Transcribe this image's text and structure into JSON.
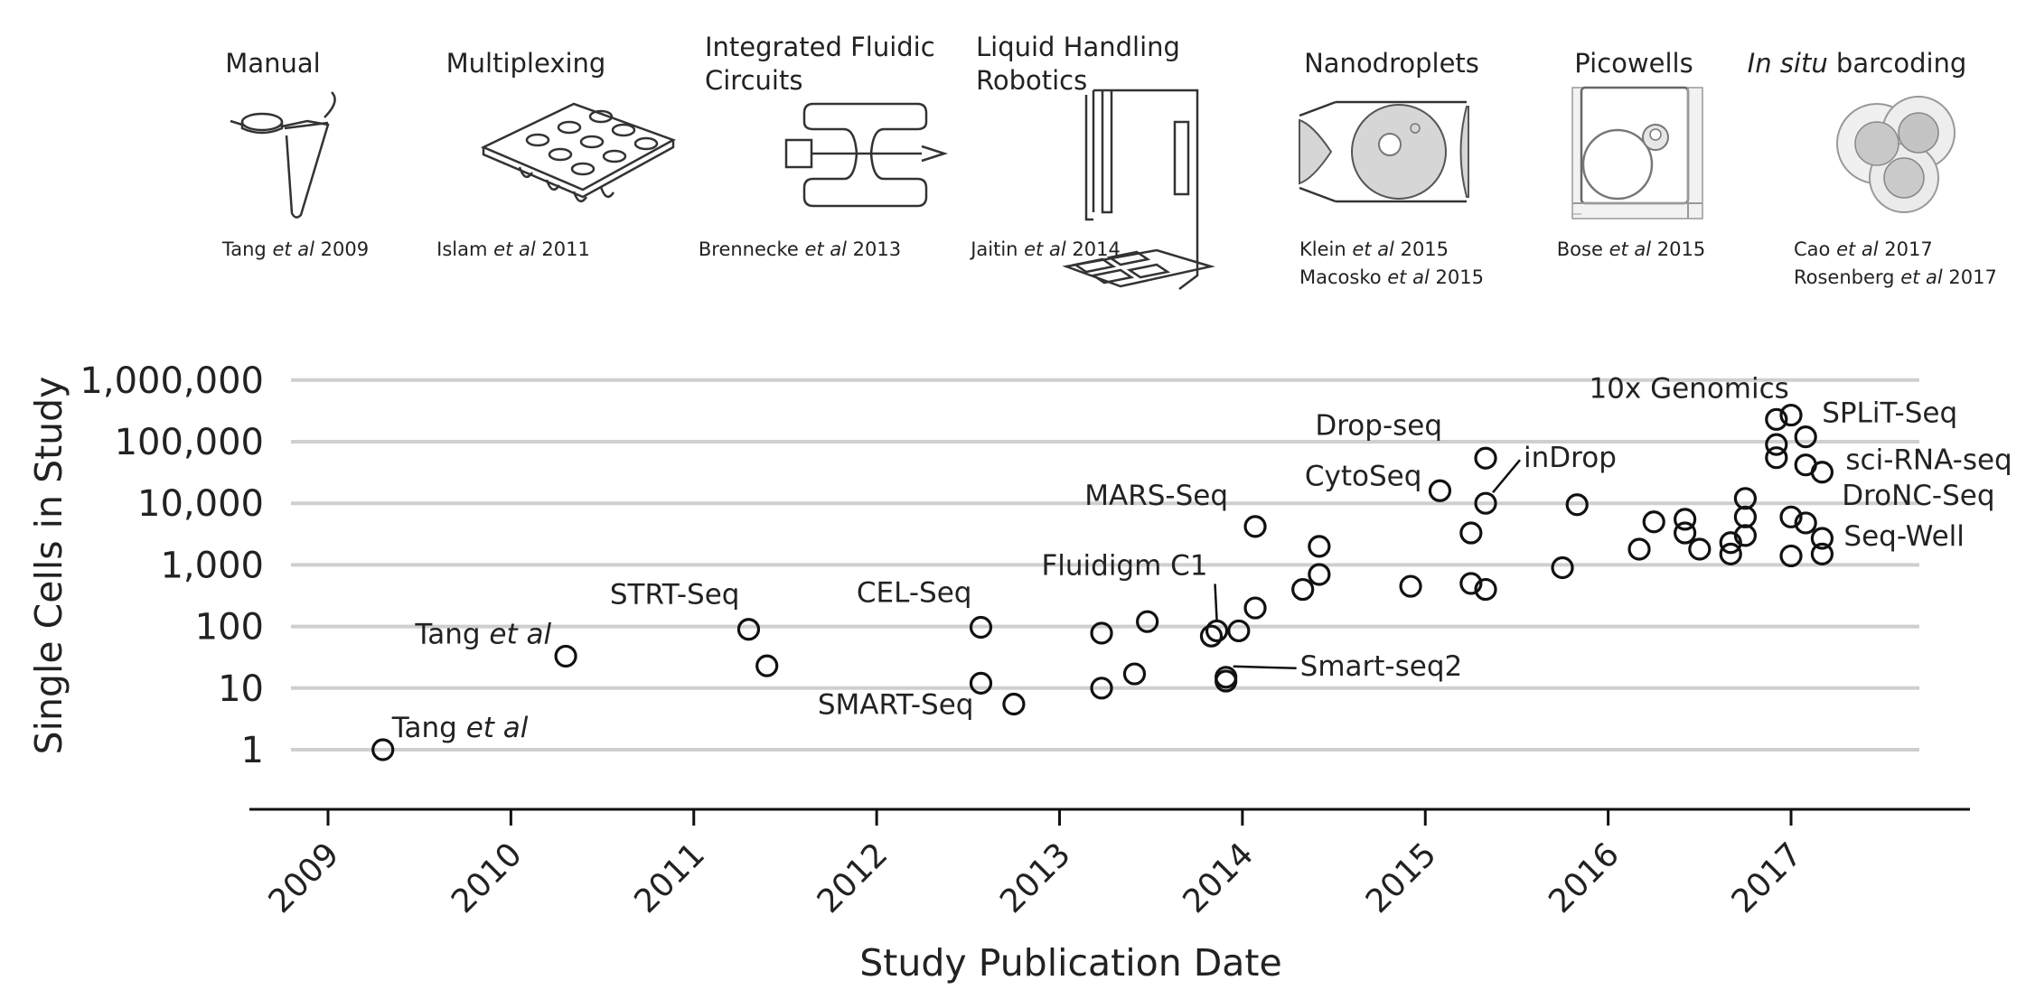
{
  "technologies": [
    {
      "label_plain": "Manual",
      "citation": [
        {
          "a": "Tang ",
          "i": "et al",
          "b": " 2009"
        }
      ]
    },
    {
      "label_plain": "Multiplexing",
      "citation": [
        {
          "a": "Islam ",
          "i": "et al",
          "b": " 2011"
        }
      ]
    },
    {
      "label_lines": [
        "Integrated Fluidic",
        "Circuits"
      ],
      "citation": [
        {
          "a": "Brennecke ",
          "i": "et al",
          "b": " 2013"
        }
      ]
    },
    {
      "label_lines": [
        "Liquid Handling",
        "Robotics"
      ],
      "citation": [
        {
          "a": "Jaitin ",
          "i": "et al",
          "b": " 2014"
        }
      ]
    },
    {
      "label_plain": "Nanodroplets",
      "citation": [
        {
          "a": "Klein ",
          "i": "et al",
          "b": " 2015"
        },
        {
          "a": "Macosko ",
          "i": "et al",
          "b": " 2015"
        }
      ]
    },
    {
      "label_plain": "Picowells",
      "citation": [
        {
          "a": "Bose ",
          "i": "et al",
          "b": " 2015"
        }
      ]
    },
    {
      "label_italic": "In situ",
      "label_rest": " barcoding",
      "citation": [
        {
          "a": "Cao ",
          "i": "et al",
          "b": " 2017"
        },
        {
          "a": "Rosenberg ",
          "i": "et al",
          "b": " 2017"
        }
      ]
    }
  ],
  "icons": [
    "tube-icon",
    "well-plate-icon",
    "fluidic-circuit-icon",
    "robot-icon",
    "droplet-icon",
    "picowell-icon",
    "barcoding-cells-icon"
  ],
  "chart_data": {
    "type": "scatter",
    "xlabel": "Study Publication Date",
    "ylabel": "Single Cells in Study",
    "x_ticks": [
      "2009",
      "2010",
      "2011",
      "2012",
      "2013",
      "2014",
      "2015",
      "2016",
      "2017"
    ],
    "y_ticks": [
      "1",
      "10",
      "100",
      "1,000",
      "10,000",
      "100,000",
      "1,000,000"
    ],
    "y_scale": "log",
    "ylim": [
      1,
      1000000
    ],
    "xlim": [
      2008.6,
      2017.95
    ],
    "grid": "horizontal",
    "points": [
      {
        "x": 2009.3,
        "y": 1
      },
      {
        "x": 2010.3,
        "y": 33
      },
      {
        "x": 2011.3,
        "y": 90
      },
      {
        "x": 2011.4,
        "y": 23
      },
      {
        "x": 2012.57,
        "y": 97
      },
      {
        "x": 2012.57,
        "y": 12
      },
      {
        "x": 2012.75,
        "y": 5.5
      },
      {
        "x": 2013.23,
        "y": 78
      },
      {
        "x": 2013.23,
        "y": 10
      },
      {
        "x": 2013.41,
        "y": 17
      },
      {
        "x": 2013.48,
        "y": 120
      },
      {
        "x": 2013.83,
        "y": 70
      },
      {
        "x": 2013.86,
        "y": 85
      },
      {
        "x": 2013.91,
        "y": 15
      },
      {
        "x": 2013.91,
        "y": 13
      },
      {
        "x": 2013.98,
        "y": 85
      },
      {
        "x": 2014.07,
        "y": 4200
      },
      {
        "x": 2014.07,
        "y": 200
      },
      {
        "x": 2014.33,
        "y": 400
      },
      {
        "x": 2014.42,
        "y": 2000
      },
      {
        "x": 2014.42,
        "y": 700
      },
      {
        "x": 2014.92,
        "y": 450
      },
      {
        "x": 2015.08,
        "y": 16000
      },
      {
        "x": 2015.25,
        "y": 3300
      },
      {
        "x": 2015.25,
        "y": 500
      },
      {
        "x": 2015.33,
        "y": 54000
      },
      {
        "x": 2015.33,
        "y": 10000
      },
      {
        "x": 2015.33,
        "y": 400
      },
      {
        "x": 2015.75,
        "y": 900
      },
      {
        "x": 2015.83,
        "y": 9500
      },
      {
        "x": 2016.17,
        "y": 1800
      },
      {
        "x": 2016.25,
        "y": 5000
      },
      {
        "x": 2016.42,
        "y": 5500
      },
      {
        "x": 2016.42,
        "y": 3300
      },
      {
        "x": 2016.5,
        "y": 1800
      },
      {
        "x": 2016.67,
        "y": 2300
      },
      {
        "x": 2016.67,
        "y": 1500
      },
      {
        "x": 2016.75,
        "y": 12000
      },
      {
        "x": 2016.75,
        "y": 6000
      },
      {
        "x": 2016.75,
        "y": 3000
      },
      {
        "x": 2016.92,
        "y": 230000
      },
      {
        "x": 2016.92,
        "y": 90000
      },
      {
        "x": 2016.92,
        "y": 55000
      },
      {
        "x": 2017.0,
        "y": 270000
      },
      {
        "x": 2017.0,
        "y": 6000
      },
      {
        "x": 2017.0,
        "y": 1400
      },
      {
        "x": 2017.08,
        "y": 120000
      },
      {
        "x": 2017.08,
        "y": 42000
      },
      {
        "x": 2017.08,
        "y": 4800
      },
      {
        "x": 2017.17,
        "y": 32000
      },
      {
        "x": 2017.17,
        "y": 2700
      },
      {
        "x": 2017.17,
        "y": 1500
      }
    ],
    "annotations": [
      {
        "text": "Tang ",
        "italic": "et al",
        "x": 2009.3,
        "y": 1,
        "anchor": "start",
        "dx": 10,
        "dy": -14
      },
      {
        "text": "Tang ",
        "italic": "et al",
        "x": 2010.3,
        "y": 33,
        "anchor": "end",
        "dx": -16,
        "dy": -14
      },
      {
        "text": "STRT-Seq",
        "x": 2011.3,
        "y": 90,
        "anchor": "end",
        "dx": -10,
        "dy": -28
      },
      {
        "text": "CEL-Seq",
        "x": 2012.57,
        "y": 97,
        "anchor": "end",
        "dx": -10,
        "dy": -28
      },
      {
        "text": "SMART-Seq",
        "x": 2012.57,
        "y": 12,
        "anchor": "end",
        "dx": -8,
        "dy": 34
      },
      {
        "text": "Fluidigm C1",
        "x": 2013.86,
        "y": 85,
        "anchor": "end",
        "dx": -10,
        "dy": -62,
        "leader": true
      },
      {
        "text": "MARS-Seq",
        "x": 2014.07,
        "y": 4200,
        "anchor": "end",
        "dx": -30,
        "dy": -24
      },
      {
        "text": "Smart-seq2",
        "x": 2013.91,
        "y": 15,
        "anchor": "start",
        "dx": 82,
        "dy": -2,
        "leader": true
      },
      {
        "text": "CytoSeq",
        "x": 2015.08,
        "y": 16000,
        "anchor": "end",
        "dx": -20,
        "dy": -6
      },
      {
        "text": "Drop-seq",
        "x": 2015.33,
        "y": 54000,
        "anchor": "end",
        "dx": -48,
        "dy": -26
      },
      {
        "text": "inDrop",
        "x": 2015.33,
        "y": 10000,
        "anchor": "start",
        "dx": 42,
        "dy": -40,
        "leader": true
      },
      {
        "text": "10x Genomics",
        "x": 2016.92,
        "y": 230000,
        "anchor": "end",
        "dx": 14,
        "dy": -24
      },
      {
        "text": "SPLiT-Seq",
        "x": 2017.08,
        "y": 120000,
        "anchor": "start",
        "dx": 18,
        "dy": -16
      },
      {
        "text": "sci-RNA-seq",
        "x": 2017.17,
        "y": 32000,
        "anchor": "start",
        "dx": 26,
        "dy": -3
      },
      {
        "text": "DroNC-Seq",
        "x": 2017.08,
        "y": 4800,
        "anchor": "start",
        "dx": 40,
        "dy": -20
      },
      {
        "text": "Seq-Well",
        "x": 2017.17,
        "y": 2700,
        "anchor": "start",
        "dx": 24,
        "dy": 8
      }
    ]
  }
}
